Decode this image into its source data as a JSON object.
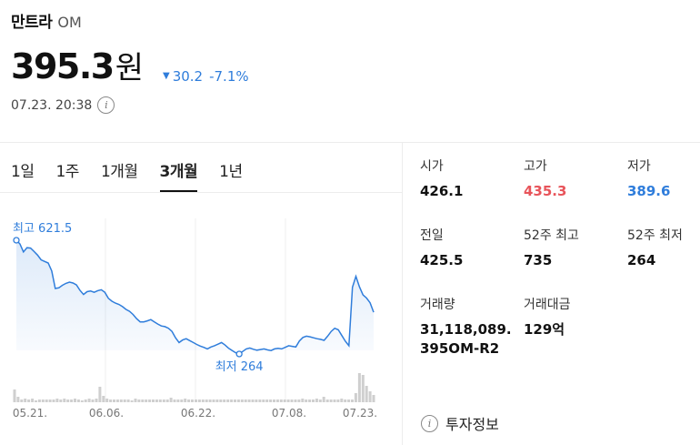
{
  "header": {
    "name": "만트라",
    "symbol": "OM",
    "price": "395.3",
    "currency": "원",
    "change_arrow": "▼",
    "change_amount": "30.2",
    "change_percent": "-7.1%",
    "timestamp": "07.23. 20:38",
    "info_icon": "i"
  },
  "tabs": [
    {
      "label": "1일",
      "active": false
    },
    {
      "label": "1주",
      "active": false
    },
    {
      "label": "1개월",
      "active": false
    },
    {
      "label": "3개월",
      "active": true
    },
    {
      "label": "1년",
      "active": false
    }
  ],
  "stats": [
    {
      "label": "시가",
      "value": "426.1",
      "tone": "normal"
    },
    {
      "label": "고가",
      "value": "435.3",
      "tone": "up"
    },
    {
      "label": "저가",
      "value": "389.6",
      "tone": "down"
    },
    {
      "label": "전일",
      "value": "425.5",
      "tone": "normal"
    },
    {
      "label": "52주 최고",
      "value": "735",
      "tone": "normal"
    },
    {
      "label": "52주 최저",
      "value": "264",
      "tone": "normal"
    },
    {
      "label": "거래량",
      "value": "31,118,089.\n395OM-R2",
      "tone": "normal"
    },
    {
      "label": "거래대금",
      "value": "129억",
      "tone": "normal"
    }
  ],
  "invest_link": "투자정보",
  "colors": {
    "line": "#2f7ddb",
    "up": "#e8545a",
    "down": "#2f7ddb",
    "volume": "#cfcfcf"
  },
  "chart_data": {
    "type": "line",
    "x_labels": [
      "05.21.",
      "06.06.",
      "06.22.",
      "07.08.",
      "07.23."
    ],
    "max_label": "최고 621.5",
    "min_label": "최저 264",
    "values": [
      621.5,
      610,
      585,
      598,
      597,
      586,
      575,
      560,
      555,
      550,
      525,
      470,
      472,
      480,
      486,
      490,
      487,
      481,
      464,
      451,
      460,
      462,
      458,
      463,
      466,
      458,
      439,
      430,
      424,
      420,
      413,
      404,
      398,
      388,
      375,
      365,
      365,
      368,
      372,
      365,
      358,
      352,
      350,
      345,
      335,
      315,
      300,
      308,
      312,
      306,
      300,
      294,
      289,
      285,
      280,
      286,
      290,
      295,
      300,
      292,
      282,
      275,
      268,
      264,
      272,
      280,
      283,
      279,
      276,
      278,
      280,
      277,
      275,
      280,
      282,
      280,
      285,
      290,
      288,
      286,
      305,
      316,
      320,
      318,
      315,
      312,
      310,
      307,
      320,
      335,
      345,
      340,
      322,
      304,
      290,
      474,
      508,
      475,
      450,
      440,
      425,
      395.3
    ],
    "volume": [
      14,
      6,
      3,
      4,
      3,
      4,
      2,
      3,
      3,
      3,
      3,
      3,
      4,
      3,
      4,
      3,
      3,
      4,
      3,
      2,
      3,
      4,
      3,
      4,
      17,
      7,
      4,
      3,
      3,
      3,
      3,
      3,
      3,
      2,
      4,
      3,
      3,
      3,
      3,
      3,
      3,
      3,
      3,
      3,
      5,
      3,
      3,
      3,
      4,
      3,
      3,
      3,
      3,
      3,
      3,
      3,
      3,
      3,
      3,
      3,
      3,
      3,
      3,
      3,
      3,
      3,
      3,
      3,
      3,
      3,
      3,
      3,
      3,
      3,
      3,
      3,
      3,
      3,
      3,
      3,
      3,
      4,
      3,
      3,
      3,
      4,
      3,
      6,
      3,
      3,
      3,
      3,
      4,
      3,
      3,
      3,
      10,
      32,
      30,
      18,
      12,
      8
    ]
  }
}
